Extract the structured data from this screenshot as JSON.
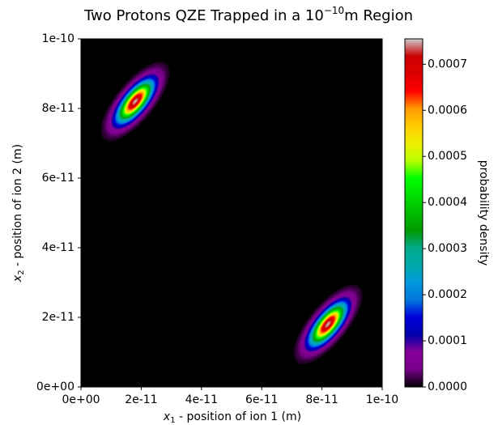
{
  "chart_data": {
    "type": "heatmap",
    "title": "Two Protons QZE Trapped in a 10",
    "title_superscript": "−10",
    "title_suffix": "m Region",
    "xlabel": {
      "var": "x",
      "sub": "1",
      "text": " - position of ion 1 (m)"
    },
    "ylabel": {
      "var": "x",
      "sub": "2",
      "text": " - position of ion 2 (m)"
    },
    "colorbar_label": "probability density",
    "colormap": "nipy_spectral",
    "xlim": [
      0,
      1e-10
    ],
    "ylim": [
      0,
      1e-10
    ],
    "xticks": [
      {
        "value": 0,
        "label": "0e+00"
      },
      {
        "value": 2e-11,
        "label": "2e-11"
      },
      {
        "value": 4e-11,
        "label": "4e-11"
      },
      {
        "value": 6e-11,
        "label": "6e-11"
      },
      {
        "value": 8e-11,
        "label": "8e-11"
      },
      {
        "value": 1e-10,
        "label": "1e-10"
      }
    ],
    "yticks": [
      {
        "value": 0,
        "label": "0e+00"
      },
      {
        "value": 2e-11,
        "label": "2e-11"
      },
      {
        "value": 4e-11,
        "label": "4e-11"
      },
      {
        "value": 6e-11,
        "label": "6e-11"
      },
      {
        "value": 8e-11,
        "label": "8e-11"
      },
      {
        "value": 1e-10,
        "label": "1e-10"
      }
    ],
    "clim": [
      0,
      0.000755
    ],
    "cticks": [
      {
        "value": 0,
        "label": "0.0000"
      },
      {
        "value": 0.0001,
        "label": "0.0001"
      },
      {
        "value": 0.0002,
        "label": "0.0002"
      },
      {
        "value": 0.0003,
        "label": "0.0003"
      },
      {
        "value": 0.0004,
        "label": "0.0004"
      },
      {
        "value": 0.0005,
        "label": "0.0005"
      },
      {
        "value": 0.0006,
        "label": "0.0006"
      },
      {
        "value": 0.0007,
        "label": "0.0007"
      }
    ],
    "peaks": [
      {
        "x": 1.8e-11,
        "y": 8.2e-11,
        "value": 0.00075,
        "sigma_major": 5e-12,
        "sigma_minor": 2e-12,
        "angle": 45
      },
      {
        "x": 8.2e-11,
        "y": 1.8e-11,
        "value": 0.00075,
        "sigma_major": 5e-12,
        "sigma_minor": 2e-12,
        "angle": 45
      }
    ]
  }
}
